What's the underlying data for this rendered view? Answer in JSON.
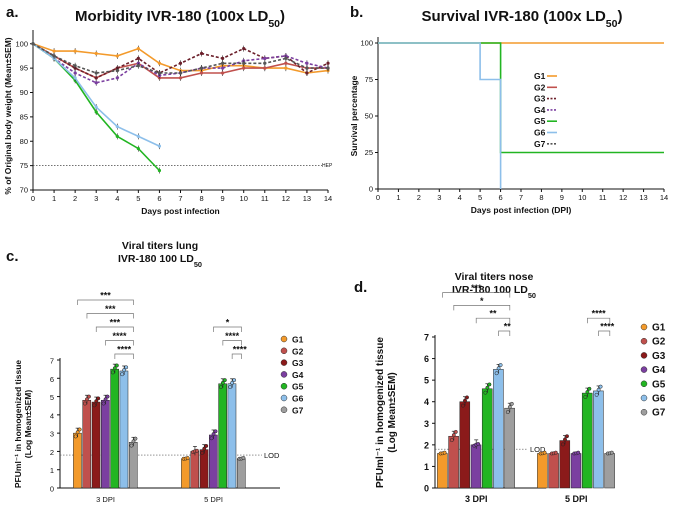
{
  "chart_data": [
    {
      "panel": "a.",
      "type": "line",
      "title": "Morbidity IVR-180 (100x LD",
      "title_sub": "50",
      "title_end": ")",
      "xlabel": "Days post infection",
      "ylabel": "% of Original body weight (Mean±SEM)",
      "xlim": [
        0,
        14
      ],
      "ylim": [
        70,
        102
      ],
      "xticks": [
        "0",
        "1",
        "2",
        "3",
        "4",
        "5",
        "6",
        "7",
        "8",
        "9",
        "10",
        "11",
        "12",
        "13",
        "14"
      ],
      "yticks": [
        "70",
        "75",
        "80",
        "85",
        "90",
        "95",
        "100"
      ],
      "threshold": {
        "value": 75,
        "label": "HEP"
      },
      "series": [
        {
          "name": "G1",
          "color": "#F39A2B",
          "x": [
            0,
            1,
            2,
            3,
            4,
            5,
            6,
            7,
            8,
            9,
            10,
            11,
            12,
            13,
            14
          ],
          "y": [
            100,
            98.5,
            98.5,
            98,
            97.5,
            99,
            96,
            94.5,
            94.5,
            95.5,
            95.5,
            95,
            95,
            94,
            94.5
          ]
        },
        {
          "name": "G2",
          "color": "#C0504D",
          "x": [
            0,
            1,
            2,
            3,
            4,
            5,
            6,
            7,
            8,
            9,
            10,
            11,
            12,
            13,
            14
          ],
          "y": [
            100,
            97.5,
            95,
            93,
            95,
            96,
            93,
            93,
            94,
            94,
            95,
            95,
            96,
            95,
            95
          ]
        },
        {
          "name": "G3",
          "color": "#6B1F2A",
          "x": [
            0,
            1,
            2,
            3,
            4,
            5,
            6,
            7,
            8,
            9,
            10,
            11,
            12,
            13,
            14
          ],
          "y": [
            100,
            97.5,
            95,
            93,
            95,
            97,
            94,
            96,
            98,
            97,
            99,
            97,
            97.5,
            94,
            96
          ]
        },
        {
          "name": "G4",
          "color": "#7B3FA0",
          "x": [
            0,
            1,
            2,
            3,
            4,
            5,
            6,
            7,
            8,
            9,
            10,
            11,
            12,
            13,
            14
          ],
          "y": [
            100,
            97,
            94,
            92,
            93,
            96,
            93.5,
            94,
            95,
            95,
            96.5,
            97,
            97.5,
            96,
            95
          ]
        },
        {
          "name": "G5",
          "color": "#22B522",
          "x": [
            0,
            1,
            2,
            3,
            4,
            5,
            6
          ],
          "y": [
            100,
            97,
            92.5,
            86,
            81,
            78.5,
            74
          ]
        },
        {
          "name": "G6",
          "color": "#8DBFEA",
          "x": [
            0,
            1,
            2,
            3,
            4,
            5,
            6
          ],
          "y": [
            100,
            97,
            93,
            87,
            83,
            81,
            79
          ]
        },
        {
          "name": "G7",
          "color": "#555555",
          "x": [
            0,
            1,
            2,
            3,
            4,
            5,
            6,
            7,
            8,
            9,
            10,
            11,
            12,
            13,
            14
          ],
          "y": [
            100,
            97.5,
            95.5,
            94,
            94.5,
            95.5,
            94,
            94,
            95,
            96,
            96,
            96,
            97,
            95,
            95
          ]
        }
      ]
    },
    {
      "panel": "b.",
      "type": "line",
      "title": "Survival IVR-180 (100x LD",
      "title_sub": "50",
      "title_end": ")",
      "xlabel": "Days post infection (DPI)",
      "ylabel": "Survival percentage",
      "xlim": [
        0,
        14
      ],
      "ylim": [
        0,
        100
      ],
      "xticks": [
        "0",
        "1",
        "2",
        "3",
        "4",
        "5",
        "6",
        "7",
        "8",
        "9",
        "10",
        "11",
        "12",
        "13",
        "14"
      ],
      "yticks": [
        "0",
        "25",
        "50",
        "75",
        "100"
      ],
      "series": [
        {
          "name": "G1",
          "color": "#F39A2B",
          "x": [
            0,
            14
          ],
          "y": [
            100,
            100
          ]
        },
        {
          "name": "G2",
          "color": "#C0504D",
          "x": [
            0,
            14
          ],
          "y": [
            100,
            100
          ]
        },
        {
          "name": "G3",
          "color": "#6B1F2A",
          "x": [
            0,
            14
          ],
          "y": [
            100,
            100
          ]
        },
        {
          "name": "G4",
          "color": "#7B3FA0",
          "x": [
            0,
            14
          ],
          "y": [
            100,
            100
          ]
        },
        {
          "name": "G5",
          "color": "#22B522",
          "x": [
            0,
            6,
            6,
            14
          ],
          "y": [
            100,
            100,
            25,
            25
          ]
        },
        {
          "name": "G6",
          "color": "#8DBFEA",
          "x": [
            0,
            5,
            5,
            6,
            6
          ],
          "y": [
            100,
            100,
            75,
            75,
            0
          ]
        },
        {
          "name": "G7",
          "color": "#555555",
          "x": [
            0,
            14
          ],
          "y": [
            100,
            100
          ]
        }
      ]
    },
    {
      "panel": "c.",
      "type": "bar",
      "title": "Viral titers lung",
      "subtitle": "IVR-180 100 LD",
      "subtitle_sub": "50",
      "ylabel": "PFUml⁻¹ in homogenized tissue (Log Mean±SEM)",
      "ylim": [
        0,
        7
      ],
      "yticks": [
        "0",
        "1",
        "2",
        "3",
        "4",
        "5",
        "6",
        "7"
      ],
      "categories": [
        "3 DPI",
        "5 DPI"
      ],
      "lod": {
        "value": 1.8,
        "label": "LOD"
      },
      "series": [
        {
          "name": "G1",
          "color": "#F39A2B",
          "values": [
            3.0,
            1.6
          ]
        },
        {
          "name": "G2",
          "color": "#C0504D",
          "values": [
            4.8,
            2.0
          ]
        },
        {
          "name": "G3",
          "color": "#8B1A1A",
          "values": [
            4.7,
            2.1
          ]
        },
        {
          "name": "G4",
          "color": "#7B3FA0",
          "values": [
            4.8,
            2.9
          ]
        },
        {
          "name": "G5",
          "color": "#22B522",
          "values": [
            6.5,
            5.7
          ]
        },
        {
          "name": "G6",
          "color": "#8DBFEA",
          "values": [
            6.4,
            5.7
          ]
        },
        {
          "name": "G7",
          "color": "#9E9E9E",
          "values": [
            2.5,
            1.6
          ]
        }
      ],
      "significance": [
        {
          "group": 0,
          "from": 0,
          "to": 6,
          "label": "***"
        },
        {
          "group": 0,
          "from": 1,
          "to": 6,
          "label": "***"
        },
        {
          "group": 0,
          "from": 2,
          "to": 6,
          "label": "***"
        },
        {
          "group": 0,
          "from": 3,
          "to": 6,
          "label": "****"
        },
        {
          "group": 0,
          "from": 4,
          "to": 6,
          "label": "****"
        },
        {
          "group": 1,
          "from": 3,
          "to": 6,
          "label": "*"
        },
        {
          "group": 1,
          "from": 4,
          "to": 6,
          "label": "****"
        },
        {
          "group": 1,
          "from": 5,
          "to": 6,
          "label": "****"
        }
      ]
    },
    {
      "panel": "d.",
      "type": "bar",
      "title": "Viral titers nose",
      "subtitle": "IVR-180 100 LD",
      "subtitle_sub": "50",
      "ylabel": "PFUml⁻¹ in homogenized tissue (Log Mean±SEM)",
      "ylim": [
        0,
        7
      ],
      "yticks": [
        "0",
        "1",
        "2",
        "3",
        "4",
        "5",
        "6",
        "7"
      ],
      "categories": [
        "3 DPI",
        "5 DPI"
      ],
      "lod": {
        "value": 1.8,
        "label": "LOD"
      },
      "series": [
        {
          "name": "G1",
          "color": "#F39A2B",
          "values": [
            1.6,
            1.6
          ]
        },
        {
          "name": "G2",
          "color": "#C0504D",
          "values": [
            2.4,
            1.6
          ]
        },
        {
          "name": "G3",
          "color": "#8B1A1A",
          "values": [
            4.0,
            2.2
          ]
        },
        {
          "name": "G4",
          "color": "#7B3FA0",
          "values": [
            2.0,
            1.6
          ]
        },
        {
          "name": "G5",
          "color": "#22B522",
          "values": [
            4.6,
            4.4
          ]
        },
        {
          "name": "G6",
          "color": "#8DBFEA",
          "values": [
            5.5,
            4.5
          ]
        },
        {
          "name": "G7",
          "color": "#9E9E9E",
          "values": [
            3.7,
            1.6
          ]
        }
      ],
      "significance": [
        {
          "group": 0,
          "from": 0,
          "to": 6,
          "label": "***"
        },
        {
          "group": 0,
          "from": 1,
          "to": 6,
          "label": "*"
        },
        {
          "group": 0,
          "from": 3,
          "to": 6,
          "label": "**"
        },
        {
          "group": 0,
          "from": 5,
          "to": 6,
          "label": "**"
        },
        {
          "group": 1,
          "from": 4,
          "to": 6,
          "label": "****"
        },
        {
          "group": 1,
          "from": 5,
          "to": 6,
          "label": "****"
        }
      ]
    }
  ]
}
